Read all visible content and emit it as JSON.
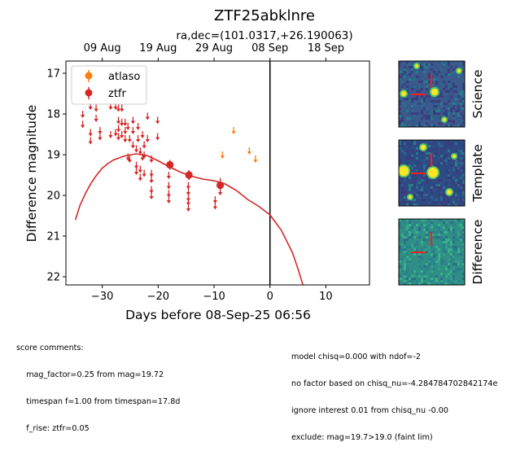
{
  "figure": {
    "title": "ZTF25abklnre",
    "subtitle": "ra,dec=(101.0317,+26.190063)"
  },
  "chart_data": {
    "type": "scatter",
    "xlabel": "Days before 08-Sep-25 06:56",
    "ylabel": "Difference magnitude",
    "xlim": [
      -36.5,
      17.8
    ],
    "ylim": [
      22.2,
      16.7
    ],
    "y_inverted": true,
    "xticks": [
      -30,
      -20,
      -10,
      0,
      10
    ],
    "yticks": [
      17,
      18,
      19,
      20,
      21,
      22
    ],
    "top_axis_ticks": [
      {
        "label": "09 Aug",
        "x": -30
      },
      {
        "label": "19 Aug",
        "x": -20
      },
      {
        "label": "29 Aug",
        "x": -10
      },
      {
        "label": "08 Sep",
        "x": 0
      },
      {
        "label": "18 Sep",
        "x": 10
      }
    ],
    "vline_x": 0,
    "legend": {
      "placement": "upper-left",
      "entries": [
        {
          "name": "atlaso",
          "color": "#ff7f0e"
        },
        {
          "name": "ztfr",
          "color": "#d62728"
        }
      ]
    },
    "series": [
      {
        "name": "ztfr",
        "color": "#d62728",
        "detections": [
          {
            "x": -17.9,
            "y": 19.25,
            "err": 0.12
          },
          {
            "x": -14.5,
            "y": 19.5,
            "err": 0.12
          },
          {
            "x": -8.9,
            "y": 19.75,
            "err": 0.12
          }
        ],
        "upper_limits": [
          [
            -33.5,
            18.0
          ],
          [
            -33.5,
            18.25
          ],
          [
            -32.1,
            17.8
          ],
          [
            -32.1,
            18.45
          ],
          [
            -32.1,
            18.65
          ],
          [
            -31.1,
            17.85
          ],
          [
            -31.1,
            18.1
          ],
          [
            -30.4,
            18.4
          ],
          [
            -30.4,
            18.55
          ],
          [
            -28.5,
            17.8
          ],
          [
            -28.5,
            18.5
          ],
          [
            -27.6,
            17.8
          ],
          [
            -27.6,
            18.45
          ],
          [
            -27.1,
            17.85
          ],
          [
            -27.1,
            18.15
          ],
          [
            -27.1,
            18.35
          ],
          [
            -27.1,
            18.55
          ],
          [
            -26.5,
            17.85
          ],
          [
            -26.5,
            18.2
          ],
          [
            -26.5,
            18.5
          ],
          [
            -25.9,
            18.2
          ],
          [
            -25.9,
            18.4
          ],
          [
            -25.9,
            18.6
          ],
          [
            -25.4,
            18.3
          ],
          [
            -25.4,
            19.05
          ],
          [
            -25.1,
            18.6
          ],
          [
            -25.1,
            19.1
          ],
          [
            -24.5,
            18.15
          ],
          [
            -24.5,
            18.4
          ],
          [
            -24.5,
            18.75
          ],
          [
            -23.9,
            18.85
          ],
          [
            -23.9,
            19.25
          ],
          [
            -23.9,
            19.4
          ],
          [
            -23.6,
            18.3
          ],
          [
            -23.6,
            18.6
          ],
          [
            -23.2,
            18.9
          ],
          [
            -23.2,
            19.35
          ],
          [
            -23.2,
            19.55
          ],
          [
            -22.8,
            18.5
          ],
          [
            -22.8,
            19.05
          ],
          [
            -22.5,
            18.75
          ],
          [
            -22.5,
            19.0
          ],
          [
            -22.5,
            19.45
          ],
          [
            -21.9,
            18.05
          ],
          [
            -21.9,
            18.6
          ],
          [
            -21.2,
            19.1
          ],
          [
            -21.2,
            19.45
          ],
          [
            -21.2,
            19.6
          ],
          [
            -21.2,
            19.85
          ],
          [
            -21.2,
            20.0
          ],
          [
            -20.1,
            18.15
          ],
          [
            -20.1,
            18.55
          ],
          [
            -18.1,
            19.5
          ],
          [
            -18.1,
            19.75
          ],
          [
            -18.1,
            19.95
          ],
          [
            -18.1,
            20.1
          ],
          [
            -14.6,
            19.75
          ],
          [
            -14.6,
            19.9
          ],
          [
            -14.6,
            20.05
          ],
          [
            -14.6,
            20.15
          ],
          [
            -14.6,
            20.3
          ],
          [
            -9.8,
            20.1
          ],
          [
            -9.8,
            20.25
          ],
          [
            -8.9,
            19.65
          ],
          [
            -8.9,
            19.9
          ]
        ]
      },
      {
        "name": "atlaso",
        "color": "#ff7f0e",
        "detections": [],
        "upper_limits": [
          [
            -6.5,
            18.4
          ],
          [
            -8.5,
            19.0
          ],
          [
            -3.7,
            18.9
          ],
          [
            -2.6,
            19.1
          ]
        ]
      }
    ],
    "model_curve": {
      "color": "#d62728",
      "x": [
        -34.8,
        -34.0,
        -33.0,
        -32.0,
        -31.0,
        -30.0,
        -29.0,
        -28.0,
        -26.0,
        -24.0,
        -22.0,
        -20.0,
        -18.0,
        -16.0,
        -14.0,
        -12.0,
        -10.0,
        -8.0,
        -6.0,
        -4.0,
        -2.0,
        0.0,
        2.0,
        4.0,
        5.0,
        6.0
      ],
      "y": [
        20.6,
        20.25,
        19.95,
        19.7,
        19.5,
        19.33,
        19.22,
        19.13,
        19.03,
        18.98,
        19.02,
        19.15,
        19.3,
        19.43,
        19.53,
        19.6,
        19.64,
        19.72,
        19.88,
        20.1,
        20.27,
        20.48,
        20.85,
        21.4,
        21.8,
        22.25
      ]
    }
  },
  "cutouts": [
    {
      "label": "Science",
      "background": "#3a5a8c"
    },
    {
      "label": "Template",
      "background": "#2e4a82"
    },
    {
      "label": "Difference",
      "background": "#2f8f86"
    }
  ],
  "comments": {
    "left": [
      "score comments:",
      "    mag_factor=0.25 from mag=19.72",
      "    timespan f=1.00 from timespan=17.8d",
      "    f_rise: ztfr=0.05"
    ],
    "right": [
      "model chisq=0.000 with ndof=-2",
      "no factor based on chisq_nu=-4.284784702842174e",
      "ignore interest 0.01 from chisq_nu -0.00",
      "exclude: mag=19.7>19.0 (faint lim)"
    ]
  }
}
